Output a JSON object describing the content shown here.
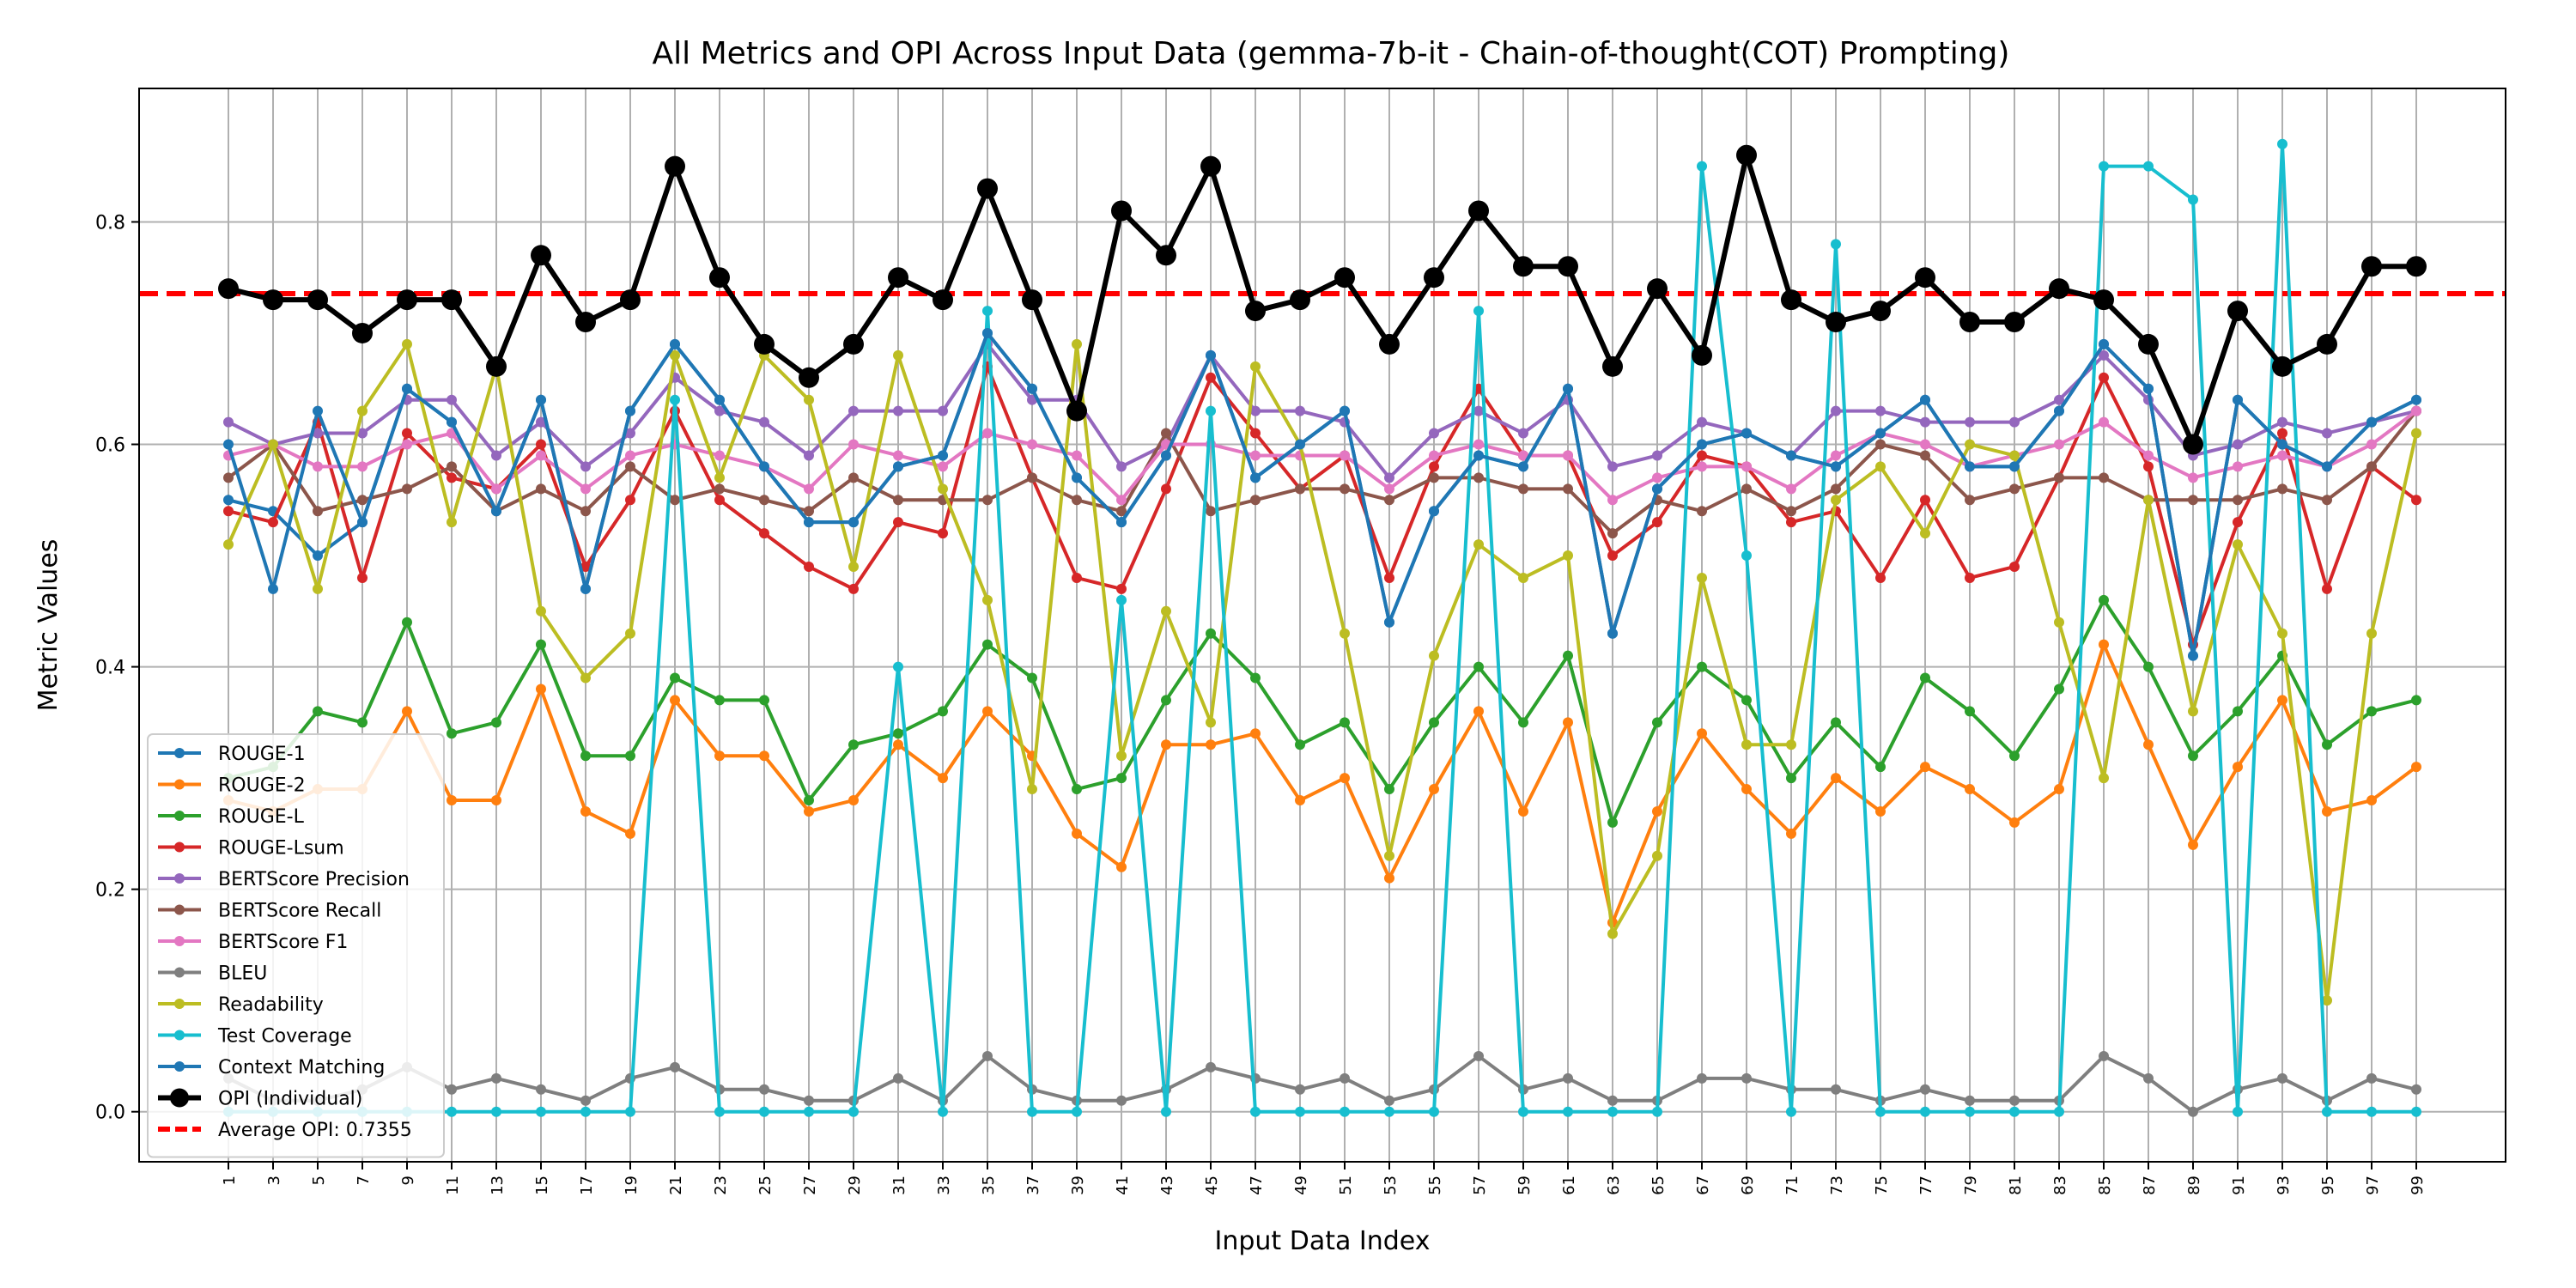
{
  "chart_data": {
    "type": "line",
    "title": "All Metrics and OPI Across Input Data (gemma-7b-it - Chain-of-thought(COT) Prompting)",
    "xlabel": "Input Data Index",
    "ylabel": "Metric Values",
    "x": [
      1,
      3,
      5,
      7,
      9,
      11,
      13,
      15,
      17,
      19,
      21,
      23,
      25,
      27,
      29,
      31,
      33,
      35,
      37,
      39,
      41,
      43,
      45,
      47,
      49,
      51,
      53,
      55,
      57,
      59,
      61,
      63,
      65,
      67,
      69,
      71,
      73,
      75,
      77,
      79,
      81,
      83,
      85,
      87,
      89,
      91,
      93,
      95,
      97,
      99
    ],
    "xlim": [
      -3,
      103
    ],
    "ylim": [
      -0.045,
      0.92
    ],
    "yticks": [
      0.0,
      0.2,
      0.4,
      0.6,
      0.8
    ],
    "grid": true,
    "legend_position": "lower-left",
    "series": [
      {
        "name": "ROUGE-1",
        "color": "#1f77b4",
        "values": [
          0.55,
          0.54,
          0.5,
          0.53,
          0.65,
          0.62,
          0.54,
          0.64,
          0.47,
          0.63,
          0.69,
          0.64,
          0.58,
          0.53,
          0.53,
          0.58,
          0.59,
          0.7,
          0.65,
          0.57,
          0.53,
          0.59,
          0.68,
          0.57,
          0.6,
          0.63,
          0.44,
          0.54,
          0.59,
          0.58,
          0.65,
          0.43,
          0.56,
          0.6,
          0.61,
          0.59,
          0.58,
          0.61,
          0.64,
          0.58,
          0.58,
          0.63,
          0.69,
          0.65,
          0.41,
          0.64,
          0.6,
          0.58,
          0.62,
          0.64
        ]
      },
      {
        "name": "ROUGE-2",
        "color": "#ff7f0e",
        "values": [
          0.28,
          0.27,
          0.29,
          0.29,
          0.36,
          0.28,
          0.28,
          0.38,
          0.27,
          0.25,
          0.37,
          0.32,
          0.32,
          0.27,
          0.28,
          0.33,
          0.3,
          0.36,
          0.32,
          0.25,
          0.22,
          0.33,
          0.33,
          0.34,
          0.28,
          0.3,
          0.21,
          0.29,
          0.36,
          0.27,
          0.35,
          0.17,
          0.27,
          0.34,
          0.29,
          0.25,
          0.3,
          0.27,
          0.31,
          0.29,
          0.26,
          0.29,
          0.42,
          0.33,
          0.24,
          0.31,
          0.37,
          0.27,
          0.28,
          0.31
        ]
      },
      {
        "name": "ROUGE-L",
        "color": "#2ca02c",
        "values": [
          0.3,
          0.31,
          0.36,
          0.35,
          0.44,
          0.34,
          0.35,
          0.42,
          0.32,
          0.32,
          0.39,
          0.37,
          0.37,
          0.28,
          0.33,
          0.34,
          0.36,
          0.42,
          0.39,
          0.29,
          0.3,
          0.37,
          0.43,
          0.39,
          0.33,
          0.35,
          0.29,
          0.35,
          0.4,
          0.35,
          0.41,
          0.26,
          0.35,
          0.4,
          0.37,
          0.3,
          0.35,
          0.31,
          0.39,
          0.36,
          0.32,
          0.38,
          0.46,
          0.4,
          0.32,
          0.36,
          0.41,
          0.33,
          0.36,
          0.37
        ]
      },
      {
        "name": "ROUGE-Lsum",
        "color": "#d62728",
        "values": [
          0.54,
          0.53,
          0.62,
          0.48,
          0.61,
          0.57,
          0.56,
          0.6,
          0.49,
          0.55,
          0.63,
          0.55,
          0.52,
          0.49,
          0.47,
          0.53,
          0.52,
          0.67,
          0.57,
          0.48,
          0.47,
          0.56,
          0.66,
          0.61,
          0.56,
          0.59,
          0.48,
          0.58,
          0.65,
          0.59,
          0.59,
          0.5,
          0.53,
          0.59,
          0.58,
          0.53,
          0.54,
          0.48,
          0.55,
          0.48,
          0.49,
          0.57,
          0.66,
          0.58,
          0.42,
          0.53,
          0.61,
          0.47,
          0.58,
          0.55
        ]
      },
      {
        "name": "BERTScore Precision",
        "color": "#9467bd",
        "values": [
          0.62,
          0.6,
          0.61,
          0.61,
          0.64,
          0.64,
          0.59,
          0.62,
          0.58,
          0.61,
          0.66,
          0.63,
          0.62,
          0.59,
          0.63,
          0.63,
          0.63,
          0.69,
          0.64,
          0.64,
          0.58,
          0.6,
          0.68,
          0.63,
          0.63,
          0.62,
          0.57,
          0.61,
          0.63,
          0.61,
          0.64,
          0.58,
          0.59,
          0.62,
          0.61,
          0.59,
          0.63,
          0.63,
          0.62,
          0.62,
          0.62,
          0.64,
          0.68,
          0.64,
          0.59,
          0.6,
          0.62,
          0.61,
          0.62,
          0.63
        ]
      },
      {
        "name": "BERTScore Recall",
        "color": "#8c564b",
        "values": [
          0.57,
          0.6,
          0.54,
          0.55,
          0.56,
          0.58,
          0.54,
          0.56,
          0.54,
          0.58,
          0.55,
          0.56,
          0.55,
          0.54,
          0.57,
          0.55,
          0.55,
          0.55,
          0.57,
          0.55,
          0.54,
          0.61,
          0.54,
          0.55,
          0.56,
          0.56,
          0.55,
          0.57,
          0.57,
          0.56,
          0.56,
          0.52,
          0.55,
          0.54,
          0.56,
          0.54,
          0.56,
          0.6,
          0.59,
          0.55,
          0.56,
          0.57,
          0.57,
          0.55,
          0.55,
          0.55,
          0.56,
          0.55,
          0.58,
          0.63
        ]
      },
      {
        "name": "BERTScore F1",
        "color": "#e377c2",
        "values": [
          0.59,
          0.6,
          0.58,
          0.58,
          0.6,
          0.61,
          0.56,
          0.59,
          0.56,
          0.59,
          0.6,
          0.59,
          0.58,
          0.56,
          0.6,
          0.59,
          0.58,
          0.61,
          0.6,
          0.59,
          0.55,
          0.6,
          0.6,
          0.59,
          0.59,
          0.59,
          0.56,
          0.59,
          0.6,
          0.59,
          0.59,
          0.55,
          0.57,
          0.58,
          0.58,
          0.56,
          0.59,
          0.61,
          0.6,
          0.58,
          0.59,
          0.6,
          0.62,
          0.59,
          0.57,
          0.58,
          0.59,
          0.58,
          0.6,
          0.63
        ]
      },
      {
        "name": "BLEU",
        "color": "#7f7f7f",
        "values": [
          0.03,
          0.01,
          0.01,
          0.02,
          0.04,
          0.02,
          0.03,
          0.02,
          0.01,
          0.03,
          0.04,
          0.02,
          0.02,
          0.01,
          0.01,
          0.03,
          0.01,
          0.05,
          0.02,
          0.01,
          0.01,
          0.02,
          0.04,
          0.03,
          0.02,
          0.03,
          0.01,
          0.02,
          0.05,
          0.02,
          0.03,
          0.01,
          0.01,
          0.03,
          0.03,
          0.02,
          0.02,
          0.01,
          0.02,
          0.01,
          0.01,
          0.01,
          0.05,
          0.03,
          0.0,
          0.02,
          0.03,
          0.01,
          0.03,
          0.02
        ]
      },
      {
        "name": "Readability",
        "color": "#bcbd22",
        "values": [
          0.51,
          0.6,
          0.47,
          0.63,
          0.69,
          0.53,
          0.67,
          0.45,
          0.39,
          0.43,
          0.68,
          0.57,
          0.68,
          0.64,
          0.49,
          0.68,
          0.56,
          0.46,
          0.29,
          0.69,
          0.32,
          0.45,
          0.35,
          0.67,
          0.6,
          0.43,
          0.23,
          0.41,
          0.51,
          0.48,
          0.5,
          0.16,
          0.23,
          0.48,
          0.33,
          0.33,
          0.55,
          0.58,
          0.52,
          0.6,
          0.59,
          0.44,
          0.3,
          0.55,
          0.36,
          0.51,
          0.43,
          0.1,
          0.43,
          0.61
        ]
      },
      {
        "name": "Test Coverage",
        "color": "#17becf",
        "values": [
          0.0,
          0.0,
          0.0,
          0.0,
          0.0,
          0.0,
          0.0,
          0.0,
          0.0,
          0.0,
          0.64,
          0.0,
          0.0,
          0.0,
          0.0,
          0.4,
          0.0,
          0.72,
          0.0,
          0.0,
          0.46,
          0.0,
          0.63,
          0.0,
          0.0,
          0.0,
          0.0,
          0.0,
          0.72,
          0.0,
          0.0,
          0.0,
          0.0,
          0.85,
          0.5,
          0.0,
          0.78,
          0.0,
          0.0,
          0.0,
          0.0,
          0.0,
          0.85,
          0.85,
          0.82,
          0.0,
          0.87,
          0.0,
          0.0,
          0.0
        ]
      },
      {
        "name": "Context Matching",
        "color": "#1f77b4",
        "values": [
          0.6,
          0.47,
          0.63,
          0.53,
          0.65,
          0.62,
          0.54,
          0.64,
          0.47,
          0.63,
          0.69,
          0.64,
          0.58,
          0.53,
          0.53,
          0.58,
          0.59,
          0.7,
          0.65,
          0.57,
          0.53,
          0.59,
          0.68,
          0.57,
          0.6,
          0.63,
          0.44,
          0.54,
          0.59,
          0.58,
          0.65,
          0.43,
          0.56,
          0.6,
          0.61,
          0.59,
          0.58,
          0.61,
          0.64,
          0.58,
          0.58,
          0.63,
          0.69,
          0.65,
          0.41,
          0.64,
          0.6,
          0.58,
          0.62,
          0.64
        ]
      },
      {
        "name": "OPI (Individual)",
        "color": "#000000",
        "values": [
          0.74,
          0.73,
          0.73,
          0.7,
          0.73,
          0.73,
          0.67,
          0.77,
          0.71,
          0.73,
          0.85,
          0.75,
          0.69,
          0.66,
          0.69,
          0.75,
          0.73,
          0.83,
          0.73,
          0.63,
          0.81,
          0.77,
          0.85,
          0.72,
          0.73,
          0.75,
          0.69,
          0.75,
          0.81,
          0.76,
          0.76,
          0.67,
          0.74,
          0.68,
          0.86,
          0.73,
          0.71,
          0.72,
          0.75,
          0.71,
          0.71,
          0.74,
          0.73,
          0.69,
          0.6,
          0.72,
          0.67,
          0.69,
          0.76,
          0.76
        ]
      }
    ],
    "average_line": {
      "label": "Average OPI: 0.7355",
      "value": 0.7355,
      "color": "#ff0000"
    }
  }
}
